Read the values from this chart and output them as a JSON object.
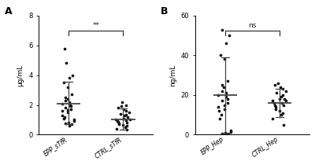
{
  "panel_A": {
    "title": "A",
    "ylabel": "μg/mL",
    "ylim": [
      0,
      8
    ],
    "yticks": [
      0,
      2,
      4,
      6,
      8
    ],
    "groups": [
      "EPP_sTfR",
      "CTRL_sTfR"
    ],
    "significance": "**",
    "EPP_sTfR": {
      "points": [
        0.6,
        0.7,
        0.75,
        0.8,
        0.9,
        1.0,
        1.1,
        1.2,
        1.3,
        1.5,
        1.6,
        1.65,
        1.7,
        1.8,
        1.9,
        2.0,
        2.1,
        2.2,
        2.3,
        2.4,
        2.5,
        2.7,
        3.2,
        3.5,
        3.8,
        4.0,
        4.8,
        5.8
      ],
      "mean": 2.1,
      "sd_upper": 3.55,
      "sd_lower": 0.7
    },
    "CTRL_sTfR": {
      "points": [
        0.35,
        0.4,
        0.5,
        0.6,
        0.65,
        0.7,
        0.75,
        0.8,
        0.85,
        0.9,
        0.95,
        1.0,
        1.05,
        1.1,
        1.2,
        1.3,
        1.35,
        1.4,
        1.5,
        1.6,
        1.7,
        1.8,
        1.9,
        2.0,
        2.2
      ],
      "mean": 1.05,
      "sd_upper": 1.75,
      "sd_lower": 0.35
    }
  },
  "panel_B": {
    "title": "B",
    "ylabel": "ng/mL",
    "ylim": [
      0,
      60
    ],
    "yticks": [
      0,
      20,
      40,
      60
    ],
    "groups": [
      "EPP_Hep",
      "CTRL_Hep"
    ],
    "significance": "ns",
    "EPP_Hep": {
      "points": [
        0,
        0,
        0.5,
        1.0,
        1.5,
        2.0,
        8,
        10,
        12,
        13,
        14,
        15,
        16,
        17,
        18,
        19,
        20,
        21,
        22,
        24,
        25,
        27,
        38,
        40,
        46,
        50,
        53
      ],
      "mean": 20,
      "sd_upper": 39,
      "sd_lower": 1
    },
    "CTRL_Hep": {
      "points": [
        5,
        8,
        10,
        11,
        12,
        13,
        14,
        15,
        15,
        16,
        16,
        17,
        17,
        18,
        18,
        19,
        20,
        21,
        22,
        23,
        24,
        25,
        26
      ],
      "mean": 16,
      "sd_upper": 23,
      "sd_lower": 9
    }
  },
  "dot_color": "#111111",
  "dot_size": 7,
  "line_color": "#444444",
  "sig_line_color": "#222222",
  "background_color": "#ffffff"
}
